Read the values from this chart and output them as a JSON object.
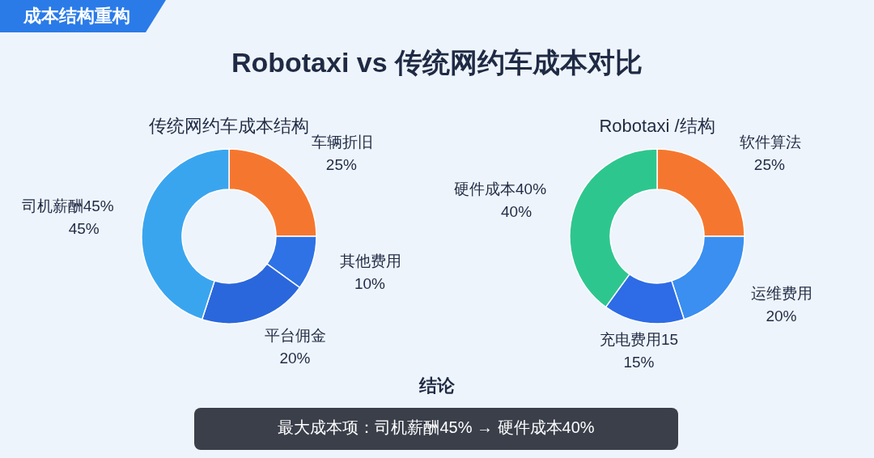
{
  "chart_data": [
    {
      "type": "other",
      "title": "Robotaxi vs 传统网约车成本对比",
      "annotations": [
        "成本结构重构"
      ]
    },
    {
      "type": "donut",
      "title": "传统网约车成本结构",
      "categories": [
        "车辆折旧",
        "其他费用",
        "平台佣金",
        "司机薪酬45%"
      ],
      "values": [
        25,
        10,
        20,
        45
      ],
      "colors": [
        "#f5772f",
        "#2e72e6",
        "#2a67dc",
        "#3aa5ef"
      ],
      "value_labels": [
        "25%",
        "10%",
        "20%",
        "45%"
      ]
    },
    {
      "type": "donut",
      "title": "Robotaxi /结构",
      "categories": [
        "软件算法",
        "运维费用",
        "充电费用15",
        "硬件成本40%"
      ],
      "values": [
        25,
        20,
        15,
        40
      ],
      "colors": [
        "#f5772f",
        "#3a8ff0",
        "#2d6ce6",
        "#2ec68f"
      ],
      "value_labels": [
        "25%",
        "20%",
        "15%",
        "40%"
      ]
    },
    {
      "type": "other",
      "title": "结论",
      "annotations": [
        "最大成本项：司机薪酬45% → 硬件成本40%"
      ]
    }
  ]
}
